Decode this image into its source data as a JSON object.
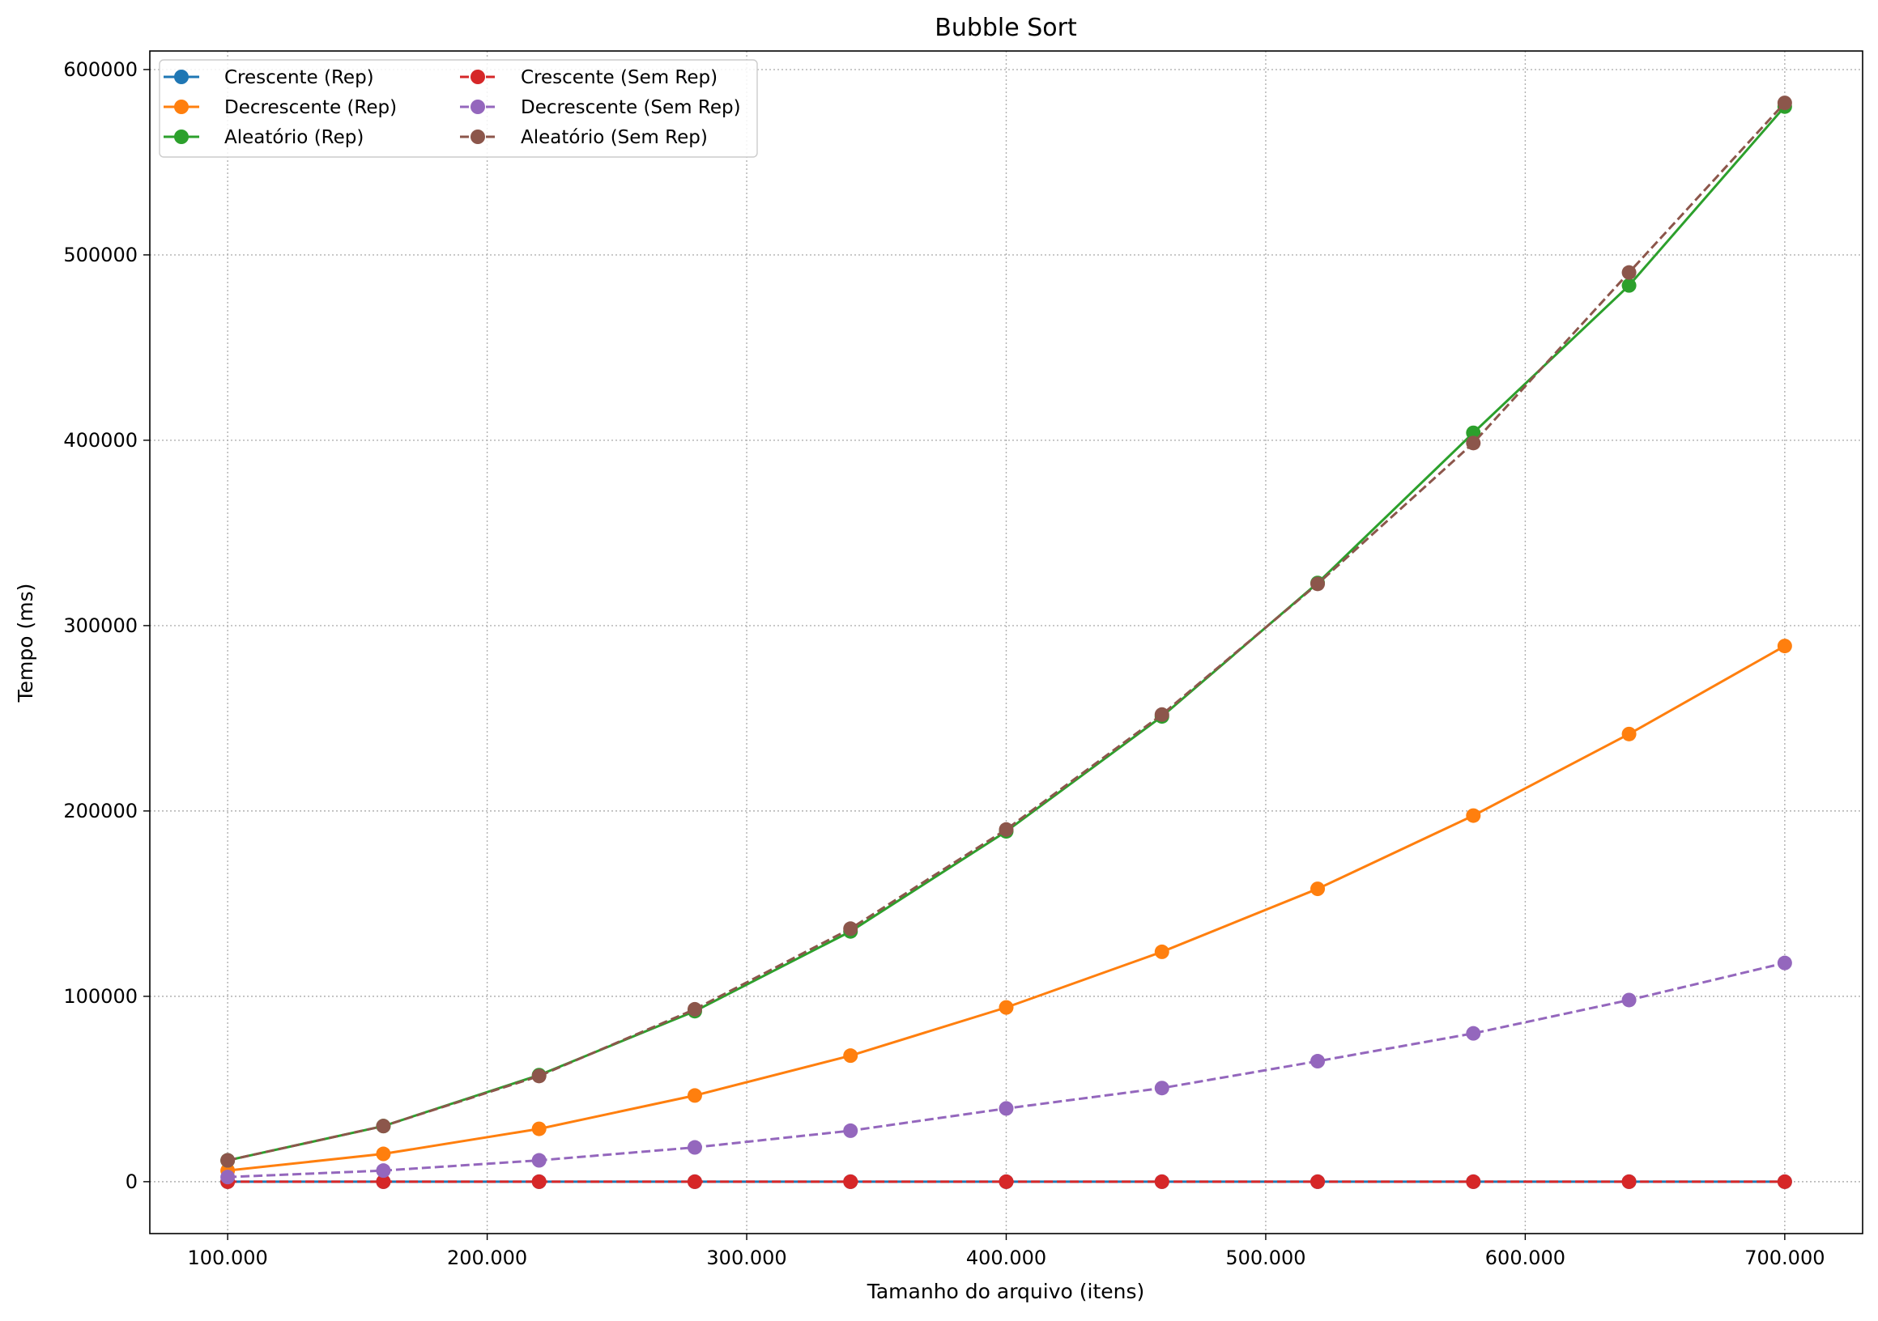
{
  "chart_data": {
    "type": "line",
    "title": "Bubble Sort",
    "xlabel": "Tamanho do arquivo (itens)",
    "ylabel": "Tempo (ms)",
    "x": [
      100000,
      160000,
      220000,
      280000,
      340000,
      400000,
      460000,
      520000,
      580000,
      640000,
      700000
    ],
    "xticks": [
      100000,
      200000,
      300000,
      400000,
      500000,
      600000,
      700000
    ],
    "xtick_labels": [
      "100.000",
      "200.000",
      "300.000",
      "400.000",
      "500.000",
      "600.000",
      "700.000"
    ],
    "yticks": [
      0,
      100000,
      200000,
      300000,
      400000,
      500000,
      600000
    ],
    "ytick_labels": [
      "0",
      "100000",
      "200000",
      "300000",
      "400000",
      "500000",
      "600000"
    ],
    "xlim": [
      70000,
      730000
    ],
    "ylim": [
      -28000,
      610000
    ],
    "grid": true,
    "legend_position": "upper-left",
    "series": [
      {
        "name": "Crescente (Rep)",
        "color": "#1f77b4",
        "dash": false,
        "values": [
          0,
          0,
          0,
          0,
          0,
          0,
          0,
          0,
          0,
          0,
          0
        ]
      },
      {
        "name": "Decrescente (Rep)",
        "color": "#ff7f0e",
        "dash": false,
        "values": [
          6000,
          15000,
          28500,
          46500,
          68000,
          94000,
          124000,
          158000,
          197500,
          241500,
          289000
        ]
      },
      {
        "name": "Aleatório (Rep)",
        "color": "#2ca02c",
        "dash": false,
        "values": [
          11500,
          30000,
          57500,
          92000,
          135000,
          189000,
          251000,
          323000,
          404000,
          483500,
          580000
        ]
      },
      {
        "name": "Crescente (Sem Rep)",
        "color": "#d62728",
        "dash": true,
        "values": [
          0,
          0,
          0,
          0,
          0,
          0,
          0,
          0,
          0,
          0,
          0
        ]
      },
      {
        "name": "Decrescente (Sem Rep)",
        "color": "#9467bd",
        "dash": true,
        "values": [
          2500,
          6000,
          11500,
          18500,
          27500,
          39500,
          50500,
          65000,
          80000,
          98000,
          118000
        ]
      },
      {
        "name": "Aleatório (Sem Rep)",
        "color": "#8c564b",
        "dash": true,
        "values": [
          11500,
          30000,
          57000,
          93000,
          136500,
          190000,
          252000,
          322500,
          398500,
          490500,
          582000
        ]
      }
    ]
  }
}
